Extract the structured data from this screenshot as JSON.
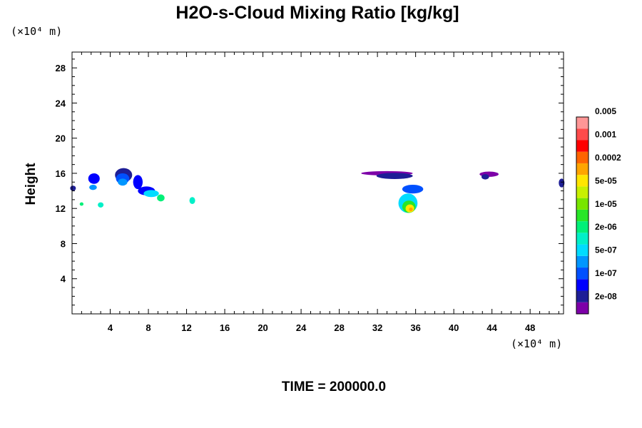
{
  "chart_data": {
    "type": "heatmap",
    "title": "H2O-s-Cloud Mixing Ratio [kg/kg]",
    "xlabel": "",
    "ylabel": "Height",
    "x_unit": "(×10⁴ m)",
    "y_unit": "(×10⁴ m)",
    "xlim": [
      0,
      51.5
    ],
    "ylim": [
      0,
      29.8
    ],
    "x_ticks": [
      4,
      8,
      12,
      16,
      20,
      24,
      28,
      32,
      36,
      40,
      44,
      48
    ],
    "y_ticks": [
      4,
      8,
      12,
      16,
      20,
      24,
      28
    ],
    "colorbar": {
      "colors": [
        "#7d00a8",
        "#1e1e96",
        "#0000ff",
        "#0050ff",
        "#0096ff",
        "#00dcff",
        "#00f0c8",
        "#00f078",
        "#28e628",
        "#78e600",
        "#c8f000",
        "#ffe600",
        "#ffa500",
        "#ff6400",
        "#ff0000",
        "#ff4b4b",
        "#ff9696"
      ],
      "labels": [
        "2e-08",
        "1e-07",
        "5e-07",
        "2e-06",
        "1e-05",
        "5e-05",
        "0.0002",
        "0.001",
        "0.005"
      ]
    },
    "clouds": [
      {
        "x": 0.1,
        "y": 14.3,
        "rx": 0.3,
        "ry": 0.3,
        "level": 1
      },
      {
        "x": 2.3,
        "y": 15.4,
        "rx": 0.6,
        "ry": 0.6,
        "level": 2
      },
      {
        "x": 2.2,
        "y": 14.4,
        "rx": 0.4,
        "ry": 0.3,
        "level": 4
      },
      {
        "x": 1.0,
        "y": 12.5,
        "rx": 0.2,
        "ry": 0.2,
        "level": 7
      },
      {
        "x": 3.0,
        "y": 12.4,
        "rx": 0.3,
        "ry": 0.3,
        "level": 6
      },
      {
        "x": 5.4,
        "y": 15.8,
        "rx": 0.9,
        "ry": 0.8,
        "level": 1
      },
      {
        "x": 5.3,
        "y": 15.4,
        "rx": 0.7,
        "ry": 0.6,
        "level": 3
      },
      {
        "x": 5.3,
        "y": 15.0,
        "rx": 0.5,
        "ry": 0.4,
        "level": 4
      },
      {
        "x": 6.9,
        "y": 15.0,
        "rx": 0.5,
        "ry": 0.8,
        "level": 2
      },
      {
        "x": 7.8,
        "y": 14.0,
        "rx": 0.9,
        "ry": 0.5,
        "level": 2
      },
      {
        "x": 8.3,
        "y": 13.7,
        "rx": 0.8,
        "ry": 0.4,
        "level": 5
      },
      {
        "x": 9.3,
        "y": 13.2,
        "rx": 0.4,
        "ry": 0.4,
        "level": 7
      },
      {
        "x": 12.6,
        "y": 12.9,
        "rx": 0.3,
        "ry": 0.4,
        "level": 6
      },
      {
        "x": 33.0,
        "y": 16.0,
        "rx": 2.7,
        "ry": 0.25,
        "level": 0
      },
      {
        "x": 33.8,
        "y": 15.7,
        "rx": 1.9,
        "ry": 0.35,
        "level": 1
      },
      {
        "x": 35.7,
        "y": 14.2,
        "rx": 1.1,
        "ry": 0.5,
        "level": 3
      },
      {
        "x": 35.2,
        "y": 12.6,
        "rx": 1.0,
        "ry": 1.1,
        "level": 5
      },
      {
        "x": 35.3,
        "y": 12.2,
        "rx": 0.7,
        "ry": 0.7,
        "level": 8
      },
      {
        "x": 35.4,
        "y": 12.0,
        "rx": 0.45,
        "ry": 0.45,
        "level": 11
      },
      {
        "x": 35.5,
        "y": 11.9,
        "rx": 0.2,
        "ry": 0.2,
        "level": 12
      },
      {
        "x": 43.7,
        "y": 15.9,
        "rx": 1.0,
        "ry": 0.3,
        "level": 0
      },
      {
        "x": 43.3,
        "y": 15.6,
        "rx": 0.4,
        "ry": 0.3,
        "level": 1
      },
      {
        "x": 51.3,
        "y": 14.9,
        "rx": 0.3,
        "ry": 0.5,
        "level": 1
      }
    ],
    "time_label": "TIME = 200000.0"
  }
}
